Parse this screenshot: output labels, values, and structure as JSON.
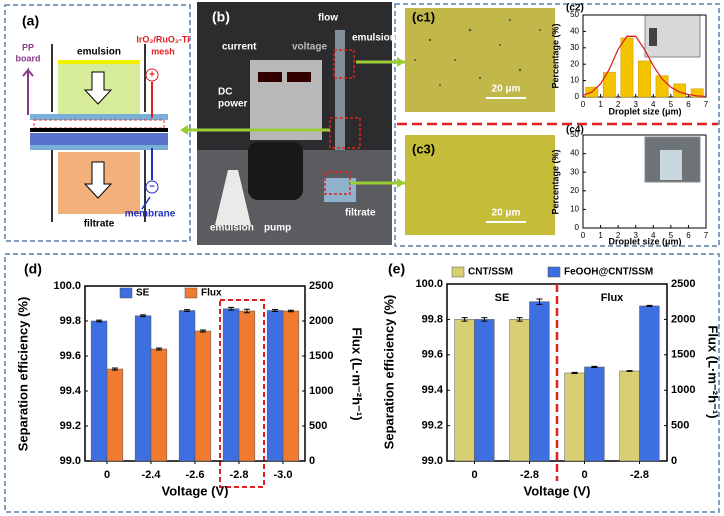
{
  "panels": {
    "a": {
      "label": "(a)",
      "pp_board": [
        "PP",
        "board"
      ],
      "mesh": [
        "IrO₂/RuO₂-Ti",
        "mesh"
      ],
      "emulsion": "emulsion",
      "filtrate": "filtrate",
      "membrane": "membrane",
      "plus": "+",
      "minus": "−"
    },
    "b": {
      "label": "(b)",
      "flow": "flow",
      "current": "current",
      "voltage": "voltage",
      "emulsion_top": "emulsion",
      "dc_power": [
        "DC",
        "power"
      ],
      "emulsion_bottom": "emulsion",
      "pump": "pump",
      "filtrate": "filtrate"
    },
    "c1": {
      "label": "(c1)",
      "scale": "20 μm"
    },
    "c3": {
      "label": "(c3)",
      "scale": "20 μm"
    }
  },
  "chart_data": [
    {
      "type": "bar",
      "label": "(c2)",
      "xlabel": "Droplet size (μm)",
      "ylabel": "Percentage (%)",
      "xlim": [
        0,
        7
      ],
      "xticks": [
        0,
        1,
        2,
        3,
        4,
        5,
        6,
        7
      ],
      "ylim": [
        0,
        50
      ],
      "yticks": [
        0,
        10,
        20,
        30,
        40,
        50
      ],
      "series": [
        {
          "type": "bar",
          "color": "#f5c400",
          "x": [
            0.5,
            1.5,
            2.5,
            3.5,
            4.5,
            5.5,
            6.5
          ],
          "values": [
            6,
            15,
            36,
            22,
            13,
            8,
            5
          ]
        },
        {
          "type": "line",
          "color": "#e02020",
          "x": [
            0,
            0.5,
            1,
            1.5,
            2,
            2.5,
            3,
            3.5,
            4,
            4.5,
            5,
            5.5,
            6,
            6.5,
            7
          ],
          "values": [
            1,
            3,
            8,
            17,
            29,
            37,
            37,
            29,
            19,
            11,
            6,
            3,
            1.5,
            0.7,
            0.3
          ]
        }
      ]
    },
    {
      "type": "bar",
      "label": "(c4)",
      "xlabel": "Droplet size (μm)",
      "ylabel": "Percentage (%)",
      "xlim": [
        0,
        7
      ],
      "xticks": [
        0,
        1,
        2,
        3,
        4,
        5,
        6,
        7
      ],
      "ylim": [
        0,
        50
      ],
      "yticks": [
        0,
        10,
        20,
        30,
        40,
        50
      ],
      "series": []
    },
    {
      "type": "bar",
      "label": "(d)",
      "xlabel": "Voltage (V)",
      "ylabel": "Separation efficiency (%)",
      "y2label": "Flux (L·m⁻²h⁻¹)",
      "categories": [
        "0",
        "-2.4",
        "-2.6",
        "-2.8",
        "-3.0"
      ],
      "ylim": [
        99.0,
        100.0
      ],
      "yticks": [
        {
          "value": 99.0,
          "label": "99.0"
        },
        99.2,
        99.4,
        99.6,
        99.8,
        {
          "value": 100.0,
          "label": "100.0"
        }
      ],
      "y2lim": [
        0,
        2500
      ],
      "y2ticks": [
        0,
        500,
        1000,
        1500,
        2000,
        2500
      ],
      "series": [
        {
          "name": "SE",
          "color": "#3d6fe0",
          "values": [
            99.8,
            99.83,
            99.86,
            99.87,
            99.86
          ],
          "errors": [
            0.005,
            0.005,
            0.005,
            0.008,
            0.006
          ]
        },
        {
          "name": "Flux",
          "color": "#f07a30",
          "axis": "y2",
          "values": [
            1314,
            1600,
            1857,
            2143,
            2143
          ],
          "errors": [
            15,
            15,
            15,
            25,
            10
          ]
        }
      ]
    },
    {
      "type": "bar",
      "label": "(e)",
      "xlabel": "Voltage (V)",
      "ylabel": "Separation efficiency (%)",
      "y2label": "Flux (L·m⁻²h⁻¹)",
      "categories": [
        "0",
        "-2.8",
        "0",
        "-2.8"
      ],
      "annotations": [
        "SE",
        "Flux"
      ],
      "ylim": [
        99.0,
        100.0
      ],
      "yticks": [
        {
          "value": 99.0,
          "label": "99.0"
        },
        99.2,
        99.4,
        99.6,
        99.8,
        {
          "value": 100.0,
          "label": "100.0"
        }
      ],
      "y2lim": [
        0,
        2500
      ],
      "y2ticks": [
        0,
        500,
        1000,
        1500,
        2000,
        2500
      ],
      "series": [
        {
          "name": "CNT/SSM",
          "color": "#d8cf72",
          "values": [
            99.8,
            99.8,
            null,
            null
          ],
          "errors": [
            0.01,
            0.01,
            null,
            null
          ]
        },
        {
          "name": "FeOOH@CNT/SSM",
          "color": "#3d6fe0",
          "values": [
            99.8,
            99.9,
            null,
            null
          ],
          "errors": [
            0.01,
            0.015,
            null,
            null
          ]
        },
        {
          "color": "#d8cf72",
          "axis": "y2",
          "values": [
            null,
            null,
            1243,
            1271
          ],
          "errors": [
            null,
            null,
            8,
            5
          ]
        },
        {
          "color": "#3d6fe0",
          "axis": "y2",
          "values": [
            null,
            null,
            1328,
            2190
          ],
          "errors": [
            null,
            null,
            8,
            8
          ]
        }
      ]
    }
  ]
}
